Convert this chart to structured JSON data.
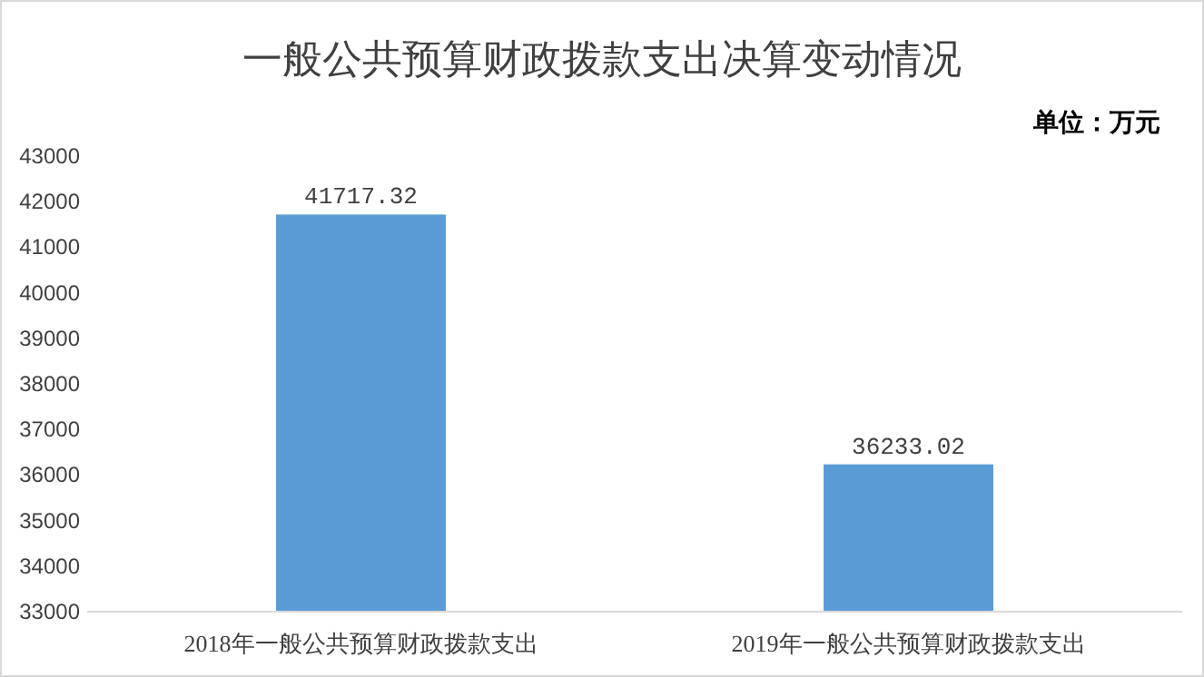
{
  "chart_data": {
    "type": "bar",
    "title": "一般公共预算财政拨款支出决算变动情况",
    "categories": [
      "2018年一般公共预算财政拨款支出",
      "2019年一般公共预算财政拨款支出"
    ],
    "values": [
      41717.32,
      36233.02
    ],
    "color": "#5b9bd5",
    "ylim": [
      33000,
      43000
    ],
    "yticks": [
      33000,
      34000,
      35000,
      36000,
      37000,
      38000,
      39000,
      40000,
      41000,
      42000,
      43000
    ],
    "data_labels": true,
    "annotations": [
      "单位：万元"
    ]
  }
}
